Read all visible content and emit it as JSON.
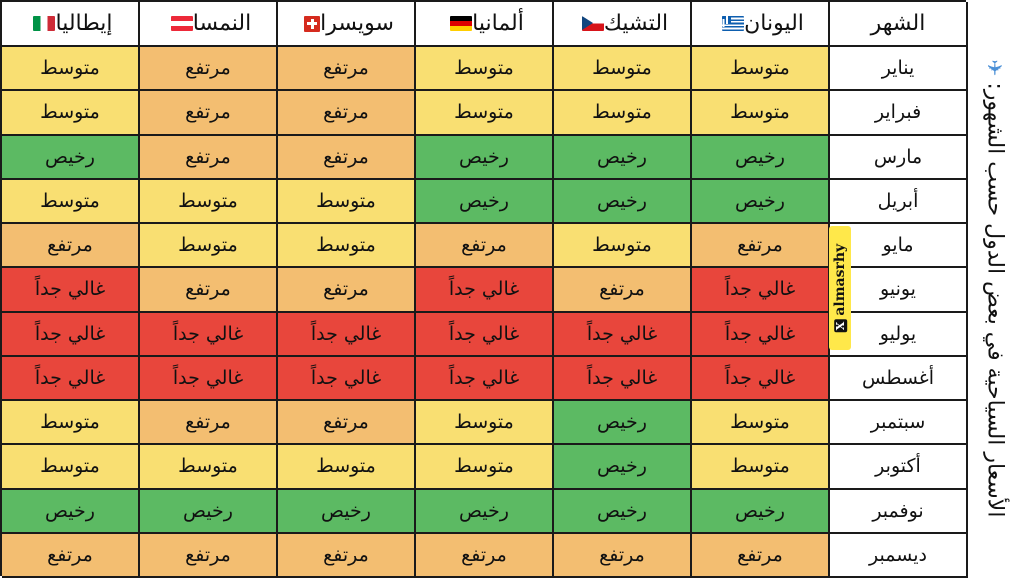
{
  "title": "الأسعار السياحية في بعض الدول حسب الشهور:",
  "watermark": "almasrhy",
  "headers": [
    {
      "label": "إيطاليا",
      "flag": "it"
    },
    {
      "label": "النمسا",
      "flag": "at"
    },
    {
      "label": "سويسرا",
      "flag": "ch"
    },
    {
      "label": "ألمانيا",
      "flag": "de"
    },
    {
      "label": "التشيك",
      "flag": "cz"
    },
    {
      "label": "اليونان",
      "flag": "gr"
    },
    {
      "label": "الشهر",
      "flag": ""
    }
  ],
  "colors": {
    "متوسط": "#f9df72",
    "مرتفع": "#f3be71",
    "رخيص": "#5cba63",
    "غالي جداً": "#e8463c"
  },
  "rows": [
    {
      "month": "يناير",
      "values": [
        "متوسط",
        "مرتفع",
        "مرتفع",
        "متوسط",
        "متوسط",
        "متوسط"
      ]
    },
    {
      "month": "فبراير",
      "values": [
        "متوسط",
        "مرتفع",
        "مرتفع",
        "متوسط",
        "متوسط",
        "متوسط"
      ]
    },
    {
      "month": "مارس",
      "values": [
        "رخيص",
        "مرتفع",
        "مرتفع",
        "رخيص",
        "رخيص",
        "رخيص"
      ]
    },
    {
      "month": "أبريل",
      "values": [
        "متوسط",
        "متوسط",
        "متوسط",
        "رخيص",
        "رخيص",
        "رخيص"
      ]
    },
    {
      "month": "مايو",
      "values": [
        "مرتفع",
        "متوسط",
        "متوسط",
        "مرتفع",
        "متوسط",
        "مرتفع"
      ]
    },
    {
      "month": "يونيو",
      "values": [
        "غالي جداً",
        "مرتفع",
        "مرتفع",
        "غالي جداً",
        "مرتفع",
        "غالي جداً"
      ]
    },
    {
      "month": "يوليو",
      "values": [
        "غالي جداً",
        "غالي جداً",
        "غالي جداً",
        "غالي جداً",
        "غالي جداً",
        "غالي جداً"
      ]
    },
    {
      "month": "أغسطس",
      "values": [
        "غالي جداً",
        "غالي جداً",
        "غالي جداً",
        "غالي جداً",
        "غالي جداً",
        "غالي جداً"
      ]
    },
    {
      "month": "سبتمبر",
      "values": [
        "متوسط",
        "مرتفع",
        "مرتفع",
        "متوسط",
        "رخيص",
        "متوسط"
      ]
    },
    {
      "month": "أكتوبر",
      "values": [
        "متوسط",
        "متوسط",
        "متوسط",
        "متوسط",
        "رخيص",
        "متوسط"
      ]
    },
    {
      "month": "نوفمبر",
      "values": [
        "رخيص",
        "رخيص",
        "رخيص",
        "رخيص",
        "رخيص",
        "رخيص"
      ]
    },
    {
      "month": "ديسمبر",
      "values": [
        "مرتفع",
        "مرتفع",
        "مرتفع",
        "مرتفع",
        "مرتفع",
        "مرتفع"
      ]
    }
  ]
}
